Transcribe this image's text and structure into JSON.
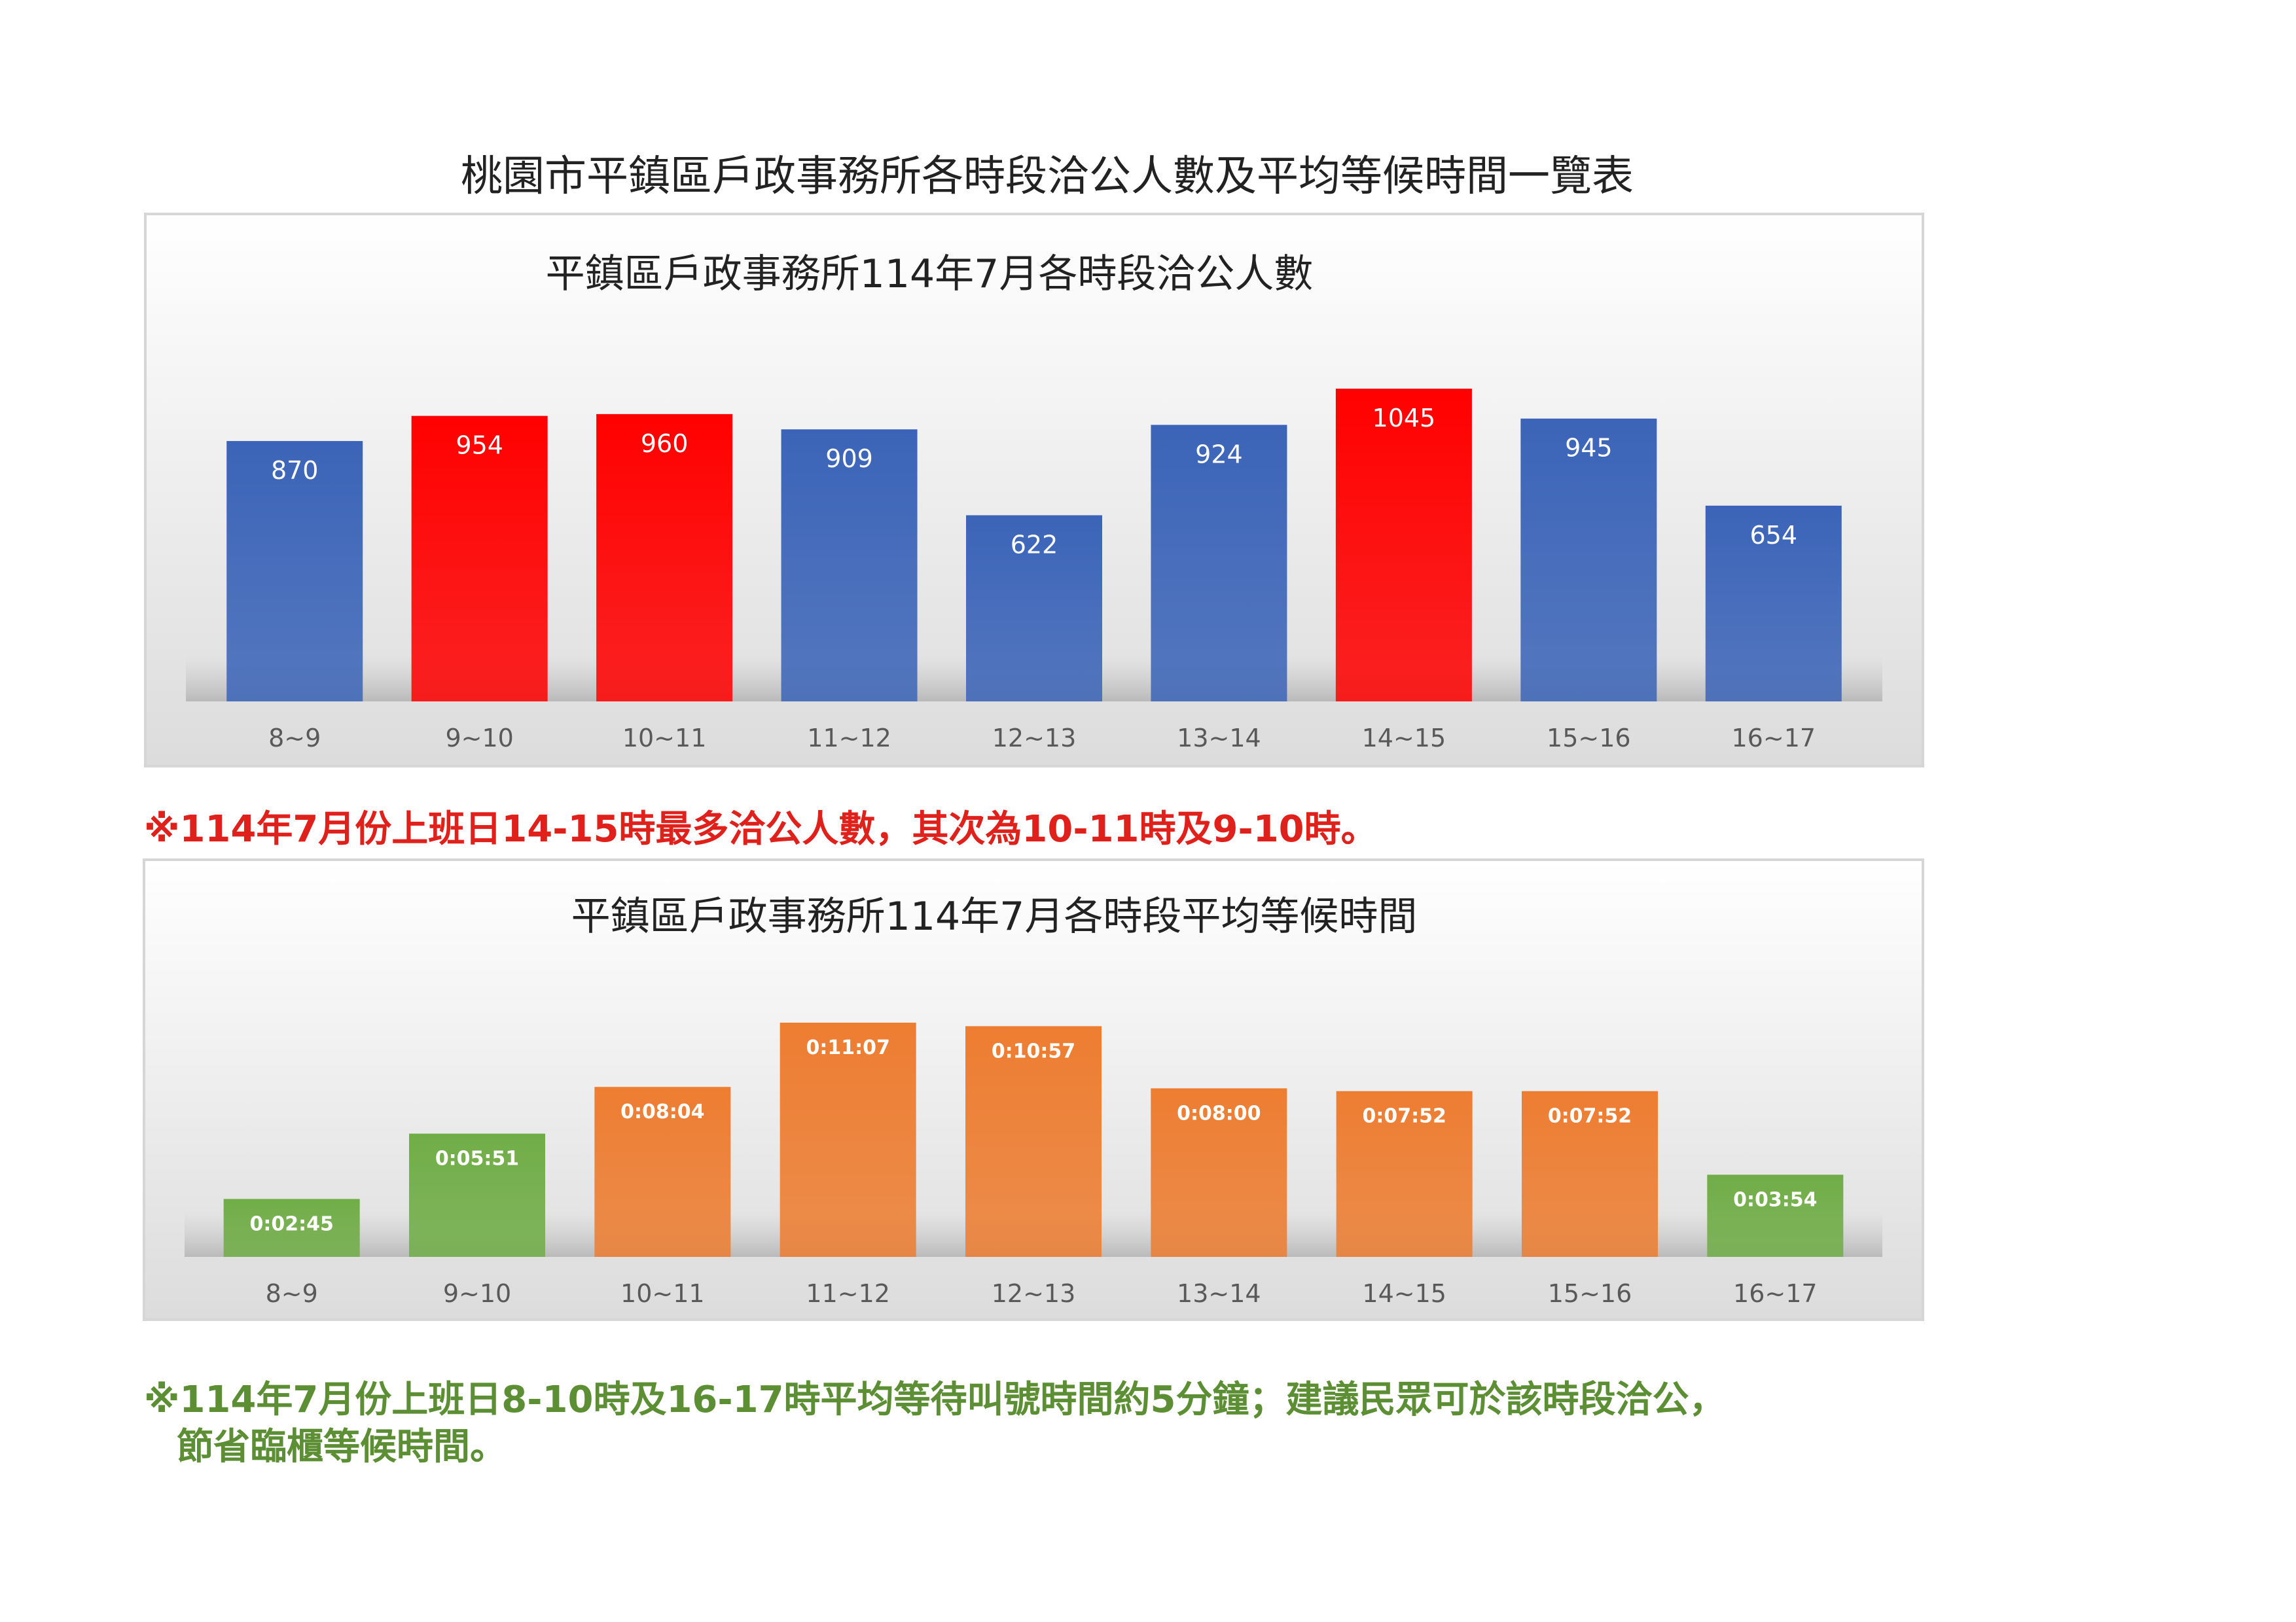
{
  "page_title": "桃園市平鎮區戶政事務所各時段洽公人數及平均等候時間一覽表",
  "colors": {
    "blue": "#3b64b8",
    "red": "#ff0000",
    "orange": "#ed7d31",
    "green": "#70ad47",
    "note_red": "#e0201b",
    "note_green": "#5c8f34"
  },
  "notes": {
    "note1": "※114年7月份上班日14-15時最多洽公人數，其次為10-11時及9-10時。",
    "note2_line1": "※114年7月份上班日8-10時及16-17時平均等待叫號時間約5分鐘；建議民眾可於該時段洽公，",
    "note2_line2": "節省臨櫃等候時間。"
  },
  "chart_data": [
    {
      "type": "bar",
      "title": "平鎮區戶政事務所114年7月各時段洽公人數",
      "categories": [
        "8~9",
        "9~10",
        "10~11",
        "11~12",
        "12~13",
        "13~14",
        "14~15",
        "15~16",
        "16~17"
      ],
      "values": [
        870,
        954,
        960,
        909,
        622,
        924,
        1045,
        945,
        654
      ],
      "value_labels": [
        "870",
        "954",
        "960",
        "909",
        "622",
        "924",
        "1045",
        "945",
        "654"
      ],
      "bar_colors": [
        "blue",
        "red",
        "red",
        "blue",
        "blue",
        "blue",
        "red",
        "blue",
        "blue"
      ],
      "ylim": [
        0,
        1045
      ],
      "grid": false,
      "legend": "none"
    },
    {
      "type": "bar",
      "title": "平鎮區戶政事務所114年7月各時段平均等候時間",
      "categories": [
        "8~9",
        "9~10",
        "10~11",
        "11~12",
        "12~13",
        "13~14",
        "14~15",
        "15~16",
        "16~17"
      ],
      "values_seconds": [
        165,
        351,
        484,
        667,
        657,
        480,
        472,
        472,
        234
      ],
      "value_labels": [
        "0:02:45",
        "0:05:51",
        "0:08:04",
        "0:11:07",
        "0:10:57",
        "0:08:00",
        "0:07:52",
        "0:07:52",
        "0:03:54"
      ],
      "bar_colors": [
        "green",
        "green",
        "orange",
        "orange",
        "orange",
        "orange",
        "orange",
        "orange",
        "green"
      ],
      "ylim_seconds": [
        0,
        667
      ],
      "grid": false,
      "legend": "none"
    }
  ]
}
